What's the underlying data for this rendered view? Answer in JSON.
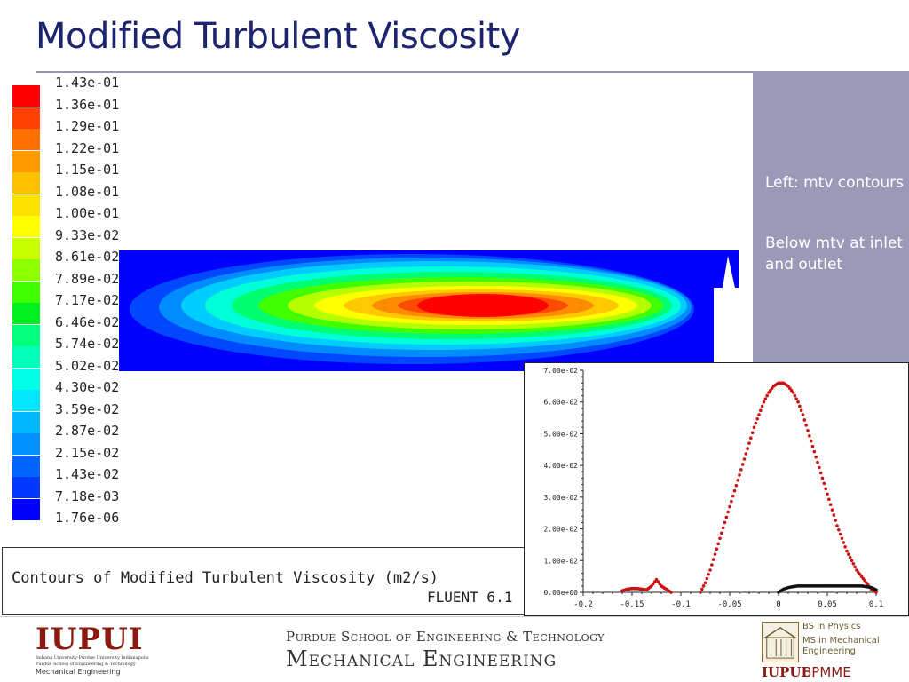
{
  "slide": {
    "title": "Modified Turbulent Viscosity"
  },
  "legend": {
    "labels": [
      "1.43e-01",
      "1.36e-01",
      "1.29e-01",
      "1.22e-01",
      "1.15e-01",
      "1.08e-01",
      "1.00e-01",
      "9.33e-02",
      "8.61e-02",
      "7.89e-02",
      "7.17e-02",
      "6.46e-02",
      "5.74e-02",
      "5.02e-02",
      "4.30e-02",
      "3.59e-02",
      "2.87e-02",
      "2.15e-02",
      "1.43e-02",
      "7.18e-03",
      "1.76e-06"
    ],
    "colors": [
      "#ffffff",
      "#ff0000",
      "#ff4000",
      "#ff7000",
      "#ff9a00",
      "#ffc000",
      "#ffe200",
      "#ffff00",
      "#c8ff00",
      "#8cff00",
      "#40ff00",
      "#00f020",
      "#00ff7c",
      "#00ffb8",
      "#00ffe6",
      "#00e6ff",
      "#00b8ff",
      "#0090ff",
      "#0064ff",
      "#0038ff",
      "#0000ff"
    ]
  },
  "contour_caption": {
    "text": "Contours of Modified Turbulent Viscosity (m2/s)",
    "software": "FLUENT 6.1"
  },
  "notes": {
    "line1": "Left: mtv contours",
    "line2": "Below mtv at inlet and outlet"
  },
  "footer": {
    "school": "Purdue School of Engineering & Technology",
    "department": "Mechanical Engineering",
    "iupui_logo": "IUPUI",
    "iupui_small1": "Indiana University-Purdue University Indianapolis",
    "iupui_small2": "Purdue School of Engineering & Technology",
    "iupui_me": "Mechanical Engineering",
    "degree1": "BS in Physics",
    "degree2": "MS in Mechanical",
    "degree3": "Engineering",
    "right_iupui": "IUPUI",
    "right_bpmme": "BPMME"
  },
  "chart_data": {
    "type": "scatter",
    "xticks": [
      "-0.2",
      "-0.15",
      "-0.1",
      "-0.05",
      "0",
      "0.05",
      "0.1"
    ],
    "yticks": [
      "0.00e+00",
      "1.00e-02",
      "2.00e-02",
      "3.00e-02",
      "4.00e-02",
      "5.00e-02",
      "6.00e-02",
      "7.00e-02"
    ],
    "xlim": [
      -0.2,
      0.1
    ],
    "ylim": [
      0,
      0.07
    ],
    "series": [
      {
        "name": "",
        "color": "#cc1111",
        "x": [
          -0.08,
          -0.075,
          -0.07,
          -0.065,
          -0.06,
          -0.055,
          -0.05,
          -0.045,
          -0.04,
          -0.035,
          -0.03,
          -0.025,
          -0.02,
          -0.015,
          -0.01,
          -0.005,
          0.0,
          0.005,
          0.01,
          0.015,
          0.02,
          0.025,
          0.03,
          0.035,
          0.04,
          0.045,
          0.05,
          0.055,
          0.06,
          0.065,
          0.07,
          0.075,
          0.08,
          0.085,
          0.09,
          0.095,
          0.1
        ],
        "y": [
          0.0,
          0.003,
          0.007,
          0.012,
          0.017,
          0.022,
          0.027,
          0.032,
          0.037,
          0.042,
          0.047,
          0.052,
          0.056,
          0.06,
          0.063,
          0.065,
          0.066,
          0.066,
          0.065,
          0.063,
          0.06,
          0.056,
          0.051,
          0.046,
          0.041,
          0.036,
          0.031,
          0.026,
          0.021,
          0.017,
          0.013,
          0.01,
          0.007,
          0.005,
          0.003,
          0.001,
          0.0
        ]
      },
      {
        "name": "",
        "color": "#cc1111",
        "x": [
          -0.16,
          -0.155,
          -0.15,
          -0.145,
          -0.14,
          -0.135,
          -0.13,
          -0.125,
          -0.12,
          -0.115,
          -0.11
        ],
        "y": [
          0.0005,
          0.001,
          0.0012,
          0.0012,
          0.001,
          0.0008,
          0.002,
          0.004,
          0.002,
          0.001,
          0.0
        ]
      },
      {
        "name": "",
        "color": "#111111",
        "x": [
          0.0,
          0.005,
          0.01,
          0.015,
          0.02,
          0.025,
          0.03,
          0.035,
          0.04,
          0.045,
          0.05,
          0.055,
          0.06,
          0.065,
          0.07,
          0.075,
          0.08,
          0.085,
          0.09,
          0.095,
          0.1
        ],
        "y": [
          0.0,
          0.001,
          0.0015,
          0.0018,
          0.002,
          0.002,
          0.002,
          0.002,
          0.002,
          0.002,
          0.002,
          0.002,
          0.002,
          0.002,
          0.002,
          0.002,
          0.002,
          0.002,
          0.0018,
          0.0015,
          0.0008
        ]
      }
    ]
  }
}
